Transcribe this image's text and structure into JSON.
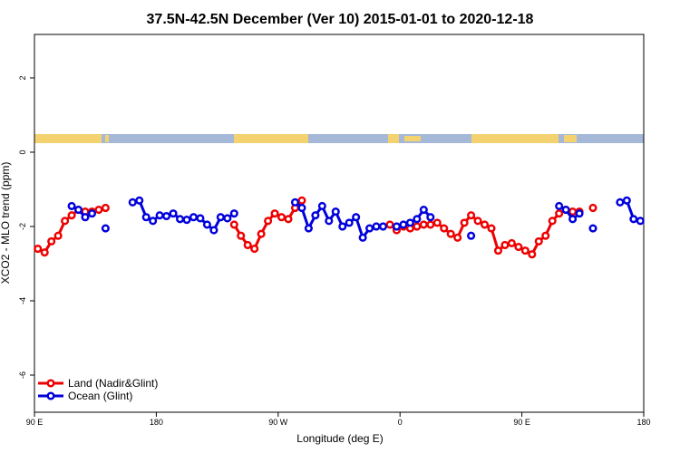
{
  "chart_data": {
    "type": "line",
    "title": "37.5N-42.5N December (Ver 10)   2015-01-01 to 2020-12-18",
    "x_label": "Longitude (deg E)",
    "y_label": "XCO2 - MLO trend (ppm)",
    "x": [
      92.5,
      97.5,
      102.5,
      107.5,
      112.5,
      117.5,
      122.5,
      127.5,
      132.5,
      137.5,
      142.5,
      147.5,
      152.5,
      157.5,
      162.5,
      167.5,
      172.5,
      177.5,
      182.5,
      187.5,
      192.5,
      197.5,
      202.5,
      207.5,
      212.5,
      217.5,
      222.5,
      227.5,
      232.5,
      237.5,
      242.5,
      247.5,
      252.5,
      257.5,
      262.5,
      267.5,
      272.5,
      277.5,
      282.5,
      287.5,
      292.5,
      297.5,
      302.5,
      307.5,
      312.5,
      317.5,
      322.5,
      327.5,
      332.5,
      337.5,
      342.5,
      347.5,
      352.5,
      357.5,
      362.5,
      367.5,
      372.5,
      377.5,
      382.5,
      387.5,
      392.5,
      397.5,
      402.5,
      407.5,
      412.5,
      417.5,
      422.5,
      427.5,
      432.5,
      437.5,
      442.5,
      447.5,
      452.5,
      457.5,
      462.5,
      467.5,
      472.5,
      477.5,
      482.5,
      487.5,
      492.5,
      497.5,
      502.5,
      507.5,
      512.5,
      517.5,
      522.5,
      527.5,
      532.5,
      537.5
    ],
    "series": [
      {
        "name": "Land (Nadir&Glint)",
        "color": "#ee0000",
        "values": [
          -2.6,
          -2.7,
          -2.4,
          -2.25,
          -1.85,
          -1.7,
          -1.55,
          -1.6,
          -1.6,
          -1.55,
          -1.5,
          null,
          null,
          null,
          null,
          null,
          null,
          null,
          null,
          null,
          null,
          null,
          null,
          null,
          null,
          null,
          null,
          null,
          null,
          -1.95,
          -2.25,
          -2.5,
          -2.6,
          -2.2,
          -1.85,
          -1.65,
          -1.75,
          -1.8,
          -1.5,
          -1.3,
          null,
          null,
          null,
          null,
          null,
          null,
          null,
          null,
          null,
          null,
          null,
          null,
          -1.95,
          -2.1,
          -2.0,
          -2.05,
          -2.0,
          -1.95,
          -1.95,
          -1.9,
          -2.05,
          -2.2,
          -2.3,
          -1.9,
          -1.7,
          -1.85,
          -1.95,
          -2.05,
          -2.65,
          -2.5,
          -2.45,
          -2.55,
          -2.65,
          -2.75,
          -2.4,
          -2.25,
          -1.85,
          -1.65,
          -1.55,
          -1.6,
          -1.6,
          null,
          -1.5,
          null,
          null,
          null,
          null,
          null,
          null,
          null
        ]
      },
      {
        "name": "Ocean (Glint)",
        "color": "#0000dd",
        "values": [
          null,
          null,
          null,
          null,
          null,
          -1.45,
          -1.55,
          -1.75,
          -1.65,
          null,
          -2.05,
          null,
          null,
          null,
          -1.35,
          -1.3,
          -1.75,
          -1.85,
          -1.7,
          -1.72,
          -1.65,
          -1.8,
          -1.82,
          -1.75,
          -1.78,
          -1.95,
          -2.1,
          -1.75,
          -1.78,
          -1.65,
          null,
          null,
          null,
          null,
          null,
          null,
          null,
          null,
          -1.35,
          -1.5,
          -2.05,
          -1.7,
          -1.45,
          -1.85,
          -1.6,
          -2.0,
          -1.9,
          -1.75,
          -2.3,
          -2.05,
          -2.0,
          -2.0,
          null,
          -2.0,
          -1.95,
          -1.9,
          -1.8,
          -1.55,
          -1.75,
          null,
          null,
          null,
          null,
          null,
          -2.25,
          null,
          null,
          null,
          null,
          null,
          null,
          null,
          null,
          null,
          null,
          null,
          null,
          -1.45,
          -1.55,
          -1.8,
          -1.65,
          null,
          -2.05,
          null,
          null,
          null,
          -1.35,
          -1.3,
          -1.8,
          -1.85
        ]
      }
    ],
    "xlim": [
      90,
      540
    ],
    "xticks": [
      {
        "value": 90,
        "label": "90 E"
      },
      180,
      {
        "value": 270,
        "label": "90 W"
      },
      {
        "value": 360,
        "label": "0"
      },
      {
        "value": 450,
        "label": "90 E"
      },
      {
        "value": 540,
        "label": "180"
      }
    ],
    "ylim": [
      -7,
      3.17
    ],
    "yticks": [
      2,
      0,
      -2,
      -4,
      -6
    ],
    "legend": "bottom-left"
  }
}
